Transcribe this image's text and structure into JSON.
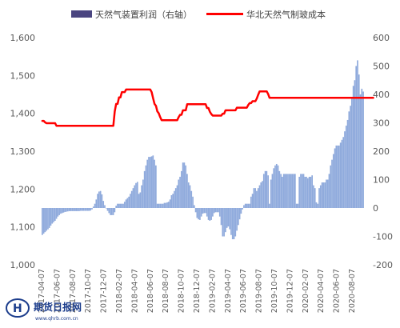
{
  "chart_data": {
    "type": "bar+line",
    "legend": {
      "bar_label": "天然气装置利润（右轴）",
      "line_label": "华北天然气制玻成本",
      "placement": "top"
    },
    "left_axis": {
      "min": 1000,
      "max": 1600,
      "ticks": [
        "1,000",
        "1,100",
        "1,200",
        "1,300",
        "1,400",
        "1,500",
        "1,600"
      ]
    },
    "right_axis": {
      "min": -200,
      "max": 600,
      "ticks": [
        "-200",
        "-100",
        "0",
        "100",
        "200",
        "300",
        "400",
        "500",
        "600"
      ]
    },
    "x_tick_labels": [
      "2017-04-07",
      "2017-06-07",
      "2017-08-07",
      "2017-10-07",
      "2017-12-07",
      "2018-02-07",
      "2018-04-07",
      "2018-06-07",
      "2018-08-07",
      "2018-10-07",
      "2018-12-07",
      "2019-02-07",
      "2019-04-07",
      "2019-06-07",
      "2019-08-07",
      "2019-10-07",
      "2019-12-07",
      "2020-02-07",
      "2020-04-07",
      "2020-06-07",
      "2020-08-07"
    ],
    "colors": {
      "bar": "#8faadc",
      "line": "#ff0000",
      "legend_bar": "#4a4580"
    },
    "grid": false,
    "series": [
      {
        "name": "天然气装置利润（右轴）",
        "axis": "right",
        "values": [
          -95,
          -90,
          -85,
          -80,
          -75,
          -70,
          -62,
          -55,
          -50,
          -45,
          -38,
          -30,
          -25,
          -20,
          -18,
          -16,
          -14,
          -13,
          -12,
          -11,
          -11,
          -11,
          -11,
          -11,
          -11,
          -11,
          -11,
          -10,
          -10,
          -10,
          -10,
          -10,
          -10,
          -10,
          -9,
          -5,
          5,
          15,
          30,
          50,
          58,
          60,
          48,
          25,
          10,
          0,
          -10,
          -18,
          -25,
          -25,
          -25,
          -15,
          8,
          15,
          15,
          15,
          15,
          15,
          22,
          30,
          35,
          40,
          50,
          60,
          70,
          80,
          88,
          92,
          50,
          55,
          80,
          100,
          130,
          150,
          170,
          180,
          180,
          182,
          185,
          170,
          150,
          15,
          15,
          15,
          15,
          15,
          18,
          18,
          20,
          22,
          30,
          45,
          50,
          60,
          70,
          80,
          100,
          110,
          130,
          160,
          160,
          150,
          120,
          90,
          80,
          60,
          40,
          10,
          -15,
          -35,
          -40,
          -42,
          -30,
          -20,
          -18,
          -18,
          -30,
          -42,
          -45,
          -42,
          -30,
          -18,
          -15,
          -15,
          -15,
          -30,
          -60,
          -100,
          -100,
          -85,
          -70,
          -65,
          -75,
          -95,
          -110,
          -110,
          -100,
          -80,
          -60,
          -40,
          -20,
          -5,
          10,
          15,
          15,
          15,
          15,
          40,
          50,
          70,
          70,
          60,
          70,
          80,
          90,
          95,
          120,
          130,
          130,
          115,
          15,
          100,
          120,
          140,
          150,
          155,
          150,
          130,
          120,
          110,
          120,
          120,
          120,
          120,
          120,
          120,
          120,
          120,
          120,
          15,
          15,
          110,
          120,
          120,
          120,
          110,
          110,
          105,
          110,
          110,
          115,
          80,
          70,
          20,
          15,
          70,
          80,
          90,
          90,
          90,
          100,
          100,
          120,
          150,
          170,
          190,
          210,
          220,
          220,
          220,
          230,
          240,
          250,
          270,
          290,
          310,
          340,
          360,
          390,
          430,
          450,
          500,
          520,
          470,
          400,
          420,
          410
        ]
      },
      {
        "name": "华北天然气制玻成本",
        "axis": "left",
        "values": [
          1380,
          1380,
          1376,
          1374,
          1374,
          1374,
          1374,
          1374,
          1374,
          1374,
          1367,
          1367,
          1367,
          1367,
          1367,
          1367,
          1367,
          1367,
          1367,
          1367,
          1367,
          1367,
          1367,
          1367,
          1367,
          1367,
          1367,
          1367,
          1367,
          1367,
          1367,
          1367,
          1367,
          1367,
          1367,
          1367,
          1367,
          1367,
          1367,
          1367,
          1367,
          1367,
          1367,
          1367,
          1367,
          1367,
          1367,
          1367,
          1367,
          1367,
          1367,
          1405,
          1425,
          1425,
          1442,
          1442,
          1456,
          1456,
          1456,
          1463,
          1463,
          1463,
          1463,
          1463,
          1463,
          1463,
          1463,
          1463,
          1463,
          1463,
          1463,
          1463,
          1463,
          1463,
          1463,
          1463,
          1463,
          1456,
          1440,
          1425,
          1420,
          1405,
          1400,
          1390,
          1382,
          1382,
          1382,
          1382,
          1382,
          1382,
          1382,
          1382,
          1382,
          1382,
          1382,
          1382,
          1390,
          1396,
          1396,
          1408,
          1408,
          1408,
          1424,
          1424,
          1424,
          1424,
          1424,
          1424,
          1424,
          1424,
          1424,
          1424,
          1424,
          1424,
          1424,
          1424,
          1414,
          1414,
          1404,
          1398,
          1394,
          1394,
          1394,
          1394,
          1394,
          1394,
          1394,
          1399,
          1399,
          1408,
          1408,
          1408,
          1408,
          1408,
          1408,
          1408,
          1408,
          1415,
          1415,
          1415,
          1415,
          1415,
          1415,
          1415,
          1415,
          1422,
          1427,
          1427,
          1432,
          1432,
          1432,
          1439,
          1449,
          1458,
          1458,
          1458,
          1458,
          1458,
          1458,
          1451,
          1441,
          1441,
          1441,
          1441,
          1441,
          1441,
          1441,
          1441,
          1441,
          1441,
          1441,
          1441,
          1441,
          1441,
          1441,
          1441,
          1441,
          1441,
          1441,
          1441,
          1441,
          1441,
          1441,
          1441,
          1441,
          1441,
          1441,
          1441,
          1441,
          1441,
          1441,
          1441,
          1441,
          1441,
          1441,
          1441,
          1441,
          1441,
          1441,
          1441,
          1441,
          1441,
          1441,
          1441,
          1441,
          1441,
          1441,
          1441,
          1441,
          1441,
          1441,
          1441,
          1441,
          1441,
          1441,
          1441,
          1441,
          1441,
          1441,
          1441,
          1441,
          1441,
          1441,
          1441,
          1441,
          1441,
          1441,
          1441,
          1441,
          1441,
          1441,
          1441,
          1441,
          1441
        ]
      }
    ]
  },
  "watermark": {
    "logo_glyph": "H",
    "title": "期货日报网",
    "url": "www.qhrb.com.cn"
  }
}
